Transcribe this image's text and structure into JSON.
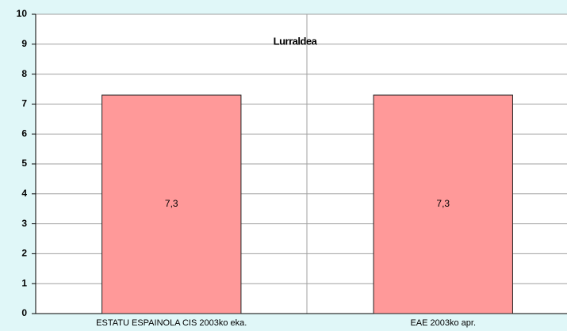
{
  "chart_data": {
    "type": "bar",
    "title": "Lurraldea",
    "categories": [
      "ESTATU ESPAINOLA CIS 2003ko eka.",
      "EAE 2003ko apr."
    ],
    "values": [
      7.3,
      7.3
    ],
    "value_labels": [
      "7,3",
      "7,3"
    ],
    "color": "#ff9999",
    "ylim": [
      0,
      10
    ],
    "yticks": [
      0,
      1,
      2,
      3,
      4,
      5,
      6,
      7,
      8,
      9,
      10
    ],
    "grid": true
  }
}
